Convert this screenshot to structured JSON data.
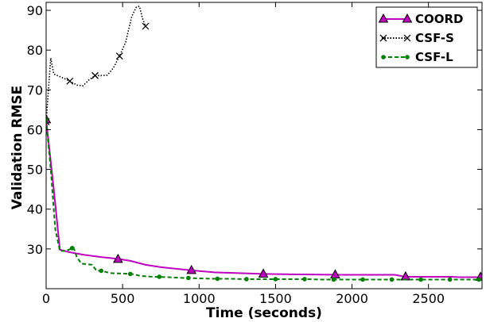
{
  "chart_data": {
    "type": "line",
    "title": "",
    "xlabel": "Time (seconds)",
    "ylabel": "Validation RMSE",
    "xlim": [
      0,
      2850
    ],
    "ylim": [
      20,
      92
    ],
    "x_ticks": [
      0,
      500,
      1000,
      1500,
      2000,
      2500
    ],
    "y_ticks": [
      30,
      40,
      50,
      60,
      70,
      80,
      90
    ],
    "grid": false,
    "legend_position": "top-right",
    "series": [
      {
        "name": "COORD",
        "color": "#bf00bf",
        "line_style": "solid",
        "marker": "triangle",
        "x": [
          0,
          50,
          90,
          150,
          250,
          350,
          470,
          550,
          650,
          750,
          950,
          1100,
          1420,
          1600,
          1900,
          2100,
          2280,
          2350,
          2500,
          2650,
          2700,
          2850
        ],
        "y": [
          62.5,
          45,
          29.8,
          29.2,
          28.5,
          28.0,
          27.5,
          27.0,
          26.0,
          25.4,
          24.6,
          24.1,
          23.7,
          23.6,
          23.5,
          23.5,
          23.5,
          23.0,
          23.0,
          23.0,
          22.9,
          22.9
        ],
        "marker_x": [
          0,
          470,
          950,
          1420,
          1890,
          2350,
          2840
        ],
        "marker_y": [
          62.5,
          27.4,
          24.6,
          23.7,
          23.5,
          23.0,
          22.9
        ]
      },
      {
        "name": "CSF-S",
        "color": "#000000",
        "line_style": "dotted",
        "marker": "x",
        "x": [
          0,
          30,
          50,
          80,
          110,
          155,
          200,
          240,
          280,
          320,
          360,
          400,
          440,
          480,
          520,
          560,
          590,
          610,
          630,
          650
        ],
        "y": [
          62.0,
          78.0,
          74.0,
          73.5,
          73.0,
          72.2,
          71.2,
          71.0,
          72.5,
          73.6,
          73.6,
          73.7,
          75.5,
          78.5,
          82.0,
          88.5,
          90.8,
          91.0,
          88.0,
          86.0
        ],
        "marker_x": [
          0,
          155,
          320,
          480,
          650
        ],
        "marker_y": [
          62.0,
          72.2,
          73.6,
          78.5,
          86.0
        ]
      },
      {
        "name": "CSF-L",
        "color": "#008000",
        "line_style": "dashed",
        "marker": "dot",
        "x": [
          0,
          30,
          60,
          90,
          130,
          160,
          180,
          200,
          230,
          260,
          300,
          330,
          360,
          420,
          500,
          560,
          620,
          700,
          800,
          900,
          1000,
          1100,
          1200,
          1300,
          1400,
          1500,
          1600,
          1700,
          1800,
          1900,
          2000,
          2100,
          2200,
          2300,
          2400,
          2500,
          2600,
          2700,
          2800,
          2850
        ],
        "y": [
          62.5,
          50,
          35,
          29.5,
          29.5,
          30.0,
          30.3,
          28.0,
          26.3,
          26.2,
          26.0,
          24.5,
          24.5,
          23.9,
          23.8,
          23.7,
          23.2,
          23.0,
          22.9,
          22.7,
          22.6,
          22.5,
          22.5,
          22.4,
          22.4,
          22.4,
          22.4,
          22.4,
          22.3,
          22.3,
          22.3,
          22.3,
          22.3,
          22.3,
          22.3,
          22.3,
          22.3,
          22.3,
          22.3,
          22.3
        ],
        "marker_x": [
          0,
          170,
          360,
          550,
          740,
          930,
          1120,
          1310,
          1500,
          1690,
          1880,
          2070,
          2260,
          2450,
          2640,
          2830
        ],
        "marker_y": [
          62.5,
          30.2,
          24.5,
          23.7,
          23.0,
          22.7,
          22.5,
          22.4,
          22.4,
          22.4,
          22.3,
          22.3,
          22.3,
          22.3,
          22.3,
          22.3
        ]
      }
    ]
  }
}
